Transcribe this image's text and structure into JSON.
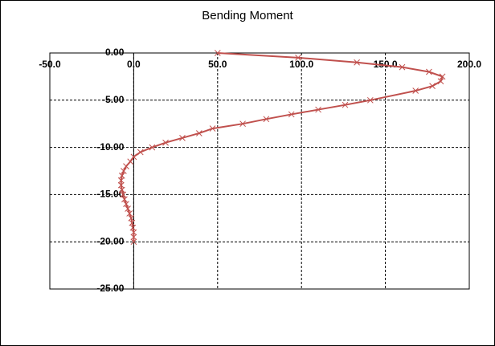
{
  "chart_data": {
    "type": "line",
    "title": "Bending Moment",
    "x": [
      50,
      98,
      133,
      160,
      176,
      184,
      183,
      178,
      168,
      141,
      126,
      110,
      94,
      79,
      65,
      47,
      39,
      29,
      19,
      11,
      4,
      0,
      -2,
      -4.5,
      -6,
      -7,
      -7.5,
      -7.5,
      -7,
      -6.3,
      -5.5,
      -4.5,
      -3.5,
      -2.5,
      -1.5,
      -1,
      -0.5,
      0,
      0,
      0
    ],
    "values": [
      0,
      -0.5,
      -1,
      -1.5,
      -2,
      -2.5,
      -3,
      -3.5,
      -4,
      -5,
      -5.5,
      -6,
      -6.5,
      -7,
      -7.5,
      -8,
      -8.5,
      -9,
      -9.5,
      -10,
      -10.5,
      -11,
      -11.5,
      -12,
      -12.5,
      -13,
      -13.5,
      -14,
      -14.5,
      -15,
      -15.5,
      -16,
      -16.5,
      -17,
      -17.5,
      -18,
      -18.5,
      -19,
      -19.5,
      -20
    ],
    "color": "#c0504d",
    "xlim": [
      -50,
      200
    ],
    "ylim": [
      -25,
      0
    ],
    "xticks": [
      {
        "value": -50,
        "label": "-50.0"
      },
      {
        "value": 0,
        "label": "0.0"
      },
      {
        "value": 50,
        "label": "50.0"
      },
      {
        "value": 100,
        "label": "100.0"
      },
      {
        "value": 150,
        "label": "150.0"
      },
      {
        "value": 200,
        "label": "200.0"
      }
    ],
    "yticks": [
      {
        "value": 0,
        "label": "0.00"
      },
      {
        "value": -5,
        "label": "-5.00"
      },
      {
        "value": -10,
        "label": "-10.00"
      },
      {
        "value": -15,
        "label": "-15.00"
      },
      {
        "value": -20,
        "label": "-20.00"
      },
      {
        "value": -25,
        "label": "-25.00"
      }
    ],
    "grid": true
  }
}
